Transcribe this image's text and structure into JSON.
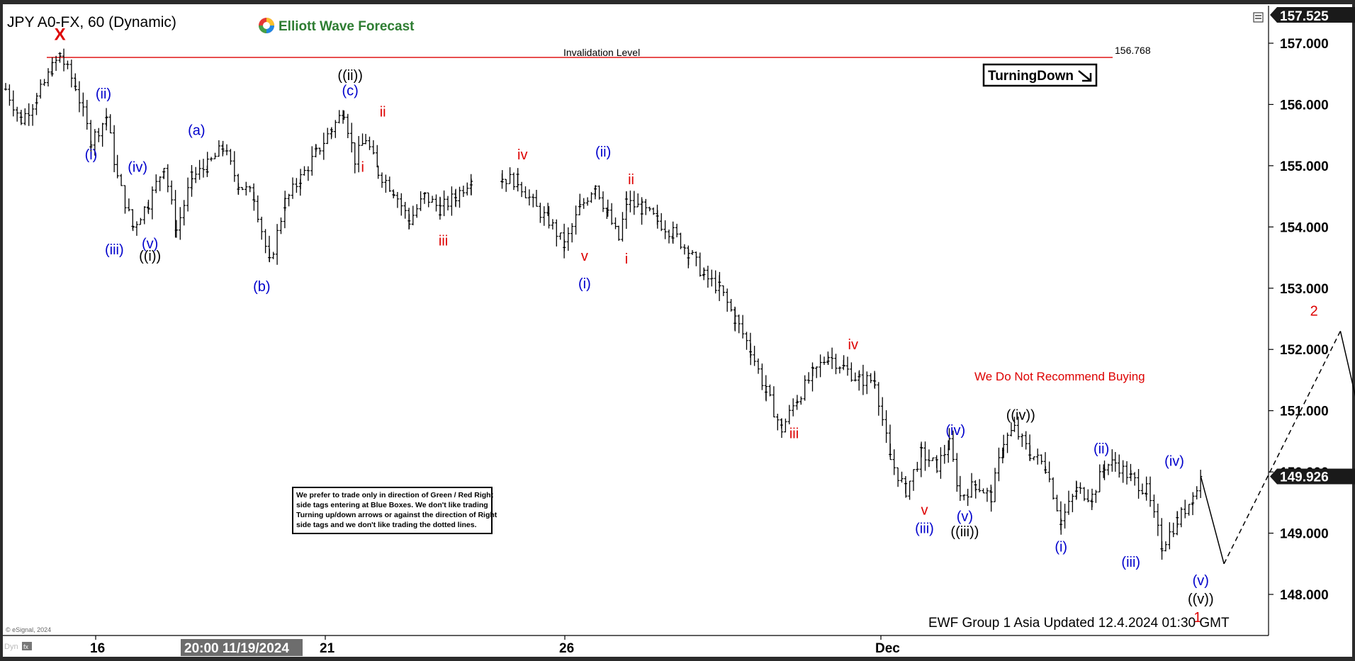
{
  "chart_data": {
    "type": "ohlc",
    "title": "JPY A0-FX, 60 (Dynamic)",
    "brand": "Elliott Wave Forecast",
    "y_axis": {
      "ticks": [
        "157.000",
        "156.000",
        "155.000",
        "154.000",
        "153.000",
        "152.000",
        "151.000",
        "150.000",
        "149.000",
        "148.000"
      ],
      "ylim": [
        147.4,
        157.7
      ],
      "top_price_tag": "157.525",
      "last_price_tag": "149.926"
    },
    "x_axis": {
      "ticks": [
        "16",
        "21",
        "26",
        "Dec"
      ],
      "cursor_label": "20:00 11/19/2024"
    },
    "invalidation": {
      "label": "Invalidation Level",
      "value": 156.768,
      "value_label": "156.768"
    },
    "turning_badge": "TurningDown",
    "advice": "We Do Not Recommend Buying",
    "disclaimer_lines": [
      "We prefer to trade only in direction of Green / Red Right",
      "side tags entering at Blue Boxes. We don't like trading",
      "Turning up/down arrows or against the direction of Right",
      "side tags and we don't like trading the dotted lines."
    ],
    "footer": "EWF Group 1 Asia Updated 12.4.2024 01:30 GMT",
    "copyright": "© eSignal, 2024",
    "corner_labels": [
      "Dyn",
      "fx"
    ],
    "price_path": [
      {
        "x": 0,
        "y": 156.25
      },
      {
        "x": 1,
        "y": 155.75
      },
      {
        "x": 2,
        "y": 156.1
      },
      {
        "x": 3,
        "y": 156.6
      },
      {
        "x": 3.5,
        "y": 156.8
      },
      {
        "x": 4.5,
        "y": 156.3
      },
      {
        "x": 5.5,
        "y": 155.4
      },
      {
        "x": 6.5,
        "y": 155.8
      },
      {
        "x": 7.2,
        "y": 154.8
      },
      {
        "x": 8.2,
        "y": 154.0
      },
      {
        "x": 9.2,
        "y": 154.4
      },
      {
        "x": 10.2,
        "y": 155.0
      },
      {
        "x": 11,
        "y": 153.95
      },
      {
        "x": 12,
        "y": 154.8
      },
      {
        "x": 13,
        "y": 155.0
      },
      {
        "x": 14,
        "y": 155.3
      },
      {
        "x": 15,
        "y": 154.7
      },
      {
        "x": 16,
        "y": 154.5
      },
      {
        "x": 17,
        "y": 153.4
      },
      {
        "x": 18,
        "y": 154.4
      },
      {
        "x": 19,
        "y": 154.8
      },
      {
        "x": 20,
        "y": 155.2
      },
      {
        "x": 21,
        "y": 155.6
      },
      {
        "x": 21.8,
        "y": 155.9
      },
      {
        "x": 22.5,
        "y": 155.1
      },
      {
        "x": 23.2,
        "y": 155.45
      },
      {
        "x": 24,
        "y": 154.9
      },
      {
        "x": 25,
        "y": 154.6
      },
      {
        "x": 26,
        "y": 154.1
      },
      {
        "x": 27,
        "y": 154.5
      },
      {
        "x": 28,
        "y": 154.3
      },
      {
        "x": 29,
        "y": 154.5
      },
      {
        "x": 30,
        "y": 154.8
      },
      {
        "x": 31,
        "y": 154.4
      },
      {
        "x": 32,
        "y": 154.8
      },
      {
        "x": 33,
        "y": 154.75
      },
      {
        "x": 34.2,
        "y": 154.3
      },
      {
        "x": 35,
        "y": 154.1
      },
      {
        "x": 36,
        "y": 153.7
      },
      {
        "x": 37,
        "y": 154.3
      },
      {
        "x": 38,
        "y": 154.7
      },
      {
        "x": 38.8,
        "y": 154.2
      },
      {
        "x": 39.5,
        "y": 153.8
      },
      {
        "x": 40,
        "y": 154.4
      },
      {
        "x": 41,
        "y": 154.3
      },
      {
        "x": 42,
        "y": 154.1
      },
      {
        "x": 43,
        "y": 153.9
      },
      {
        "x": 44,
        "y": 153.6
      },
      {
        "x": 45,
        "y": 153.2
      },
      {
        "x": 46,
        "y": 153.0
      },
      {
        "x": 47,
        "y": 152.5
      },
      {
        "x": 48,
        "y": 152.0
      },
      {
        "x": 49,
        "y": 151.3
      },
      {
        "x": 50,
        "y": 150.7
      },
      {
        "x": 51,
        "y": 151.2
      },
      {
        "x": 52,
        "y": 151.6
      },
      {
        "x": 53,
        "y": 151.9
      },
      {
        "x": 54,
        "y": 151.7
      },
      {
        "x": 55,
        "y": 151.5
      },
      {
        "x": 56,
        "y": 151.5
      },
      {
        "x": 57,
        "y": 150.2
      },
      {
        "x": 58,
        "y": 149.7
      },
      {
        "x": 59,
        "y": 150.3
      },
      {
        "x": 60,
        "y": 150.1
      },
      {
        "x": 60.8,
        "y": 150.45
      },
      {
        "x": 61.5,
        "y": 149.6
      },
      {
        "x": 62.5,
        "y": 149.8
      },
      {
        "x": 63.5,
        "y": 149.6
      },
      {
        "x": 64.3,
        "y": 150.5
      },
      {
        "x": 65,
        "y": 150.7
      },
      {
        "x": 66,
        "y": 150.3
      },
      {
        "x": 67,
        "y": 150.1
      },
      {
        "x": 68,
        "y": 149.2
      },
      {
        "x": 69,
        "y": 149.7
      },
      {
        "x": 70,
        "y": 149.6
      },
      {
        "x": 70.8,
        "y": 150.1
      },
      {
        "x": 71.5,
        "y": 150.15
      },
      {
        "x": 72.5,
        "y": 149.9
      },
      {
        "x": 73.5,
        "y": 149.7
      },
      {
        "x": 74.5,
        "y": 148.8
      },
      {
        "x": 75.5,
        "y": 149.2
      },
      {
        "x": 76.5,
        "y": 149.6
      },
      {
        "x": 77,
        "y": 149.9
      }
    ],
    "projection": [
      {
        "x": 77,
        "y": 149.93,
        "style": "solid"
      },
      {
        "x": 78.5,
        "y": 148.5,
        "style": "dashed"
      },
      {
        "x": 86,
        "y": 152.3,
        "style": "solid"
      },
      {
        "x": 90,
        "y": 147.9
      }
    ],
    "wave_labels": [
      {
        "text": "X",
        "x": 3.5,
        "y": 157.05,
        "color": "#dd0000",
        "big": true
      },
      {
        "text": "(i)",
        "x": 5.5,
        "y": 155.1,
        "color": "#0000cc"
      },
      {
        "text": "(ii)",
        "x": 6.3,
        "y": 156.1,
        "color": "#0000cc"
      },
      {
        "text": "(iii)",
        "x": 7.0,
        "y": 153.55,
        "color": "#0000cc"
      },
      {
        "text": "(iv)",
        "x": 8.5,
        "y": 154.9,
        "color": "#0000cc"
      },
      {
        "text": "(v)",
        "x": 9.3,
        "y": 153.65,
        "color": "#0000cc"
      },
      {
        "text": "((i))",
        "x": 9.3,
        "y": 153.45,
        "color": "#000000"
      },
      {
        "text": "(a)",
        "x": 12.3,
        "y": 155.5,
        "color": "#0000cc"
      },
      {
        "text": "(b)",
        "x": 16.5,
        "y": 152.95,
        "color": "#0000cc"
      },
      {
        "text": "((ii))",
        "x": 22.2,
        "y": 156.4,
        "color": "#000000"
      },
      {
        "text": "(c)",
        "x": 22.2,
        "y": 156.15,
        "color": "#0000cc"
      },
      {
        "text": "i",
        "x": 23.0,
        "y": 154.9,
        "color": "#dd0000"
      },
      {
        "text": "ii",
        "x": 24.3,
        "y": 155.8,
        "color": "#dd0000"
      },
      {
        "text": "iii",
        "x": 28.2,
        "y": 153.7,
        "color": "#dd0000"
      },
      {
        "text": "iv",
        "x": 33.3,
        "y": 155.1,
        "color": "#dd0000"
      },
      {
        "text": "v",
        "x": 37.3,
        "y": 153.45,
        "color": "#dd0000"
      },
      {
        "text": "(i)",
        "x": 37.3,
        "y": 153.0,
        "color": "#0000cc"
      },
      {
        "text": "(ii)",
        "x": 38.5,
        "y": 155.15,
        "color": "#0000cc"
      },
      {
        "text": "ii",
        "x": 40.3,
        "y": 154.7,
        "color": "#dd0000"
      },
      {
        "text": "i",
        "x": 40.0,
        "y": 153.4,
        "color": "#dd0000"
      },
      {
        "text": "iii",
        "x": 50.8,
        "y": 150.55,
        "color": "#dd0000"
      },
      {
        "text": "iv",
        "x": 54.6,
        "y": 152.0,
        "color": "#dd0000"
      },
      {
        "text": "v",
        "x": 59.2,
        "y": 149.3,
        "color": "#dd0000"
      },
      {
        "text": "(iii)",
        "x": 59.2,
        "y": 149.0,
        "color": "#0000cc"
      },
      {
        "text": "(iv)",
        "x": 61.2,
        "y": 150.6,
        "color": "#0000cc"
      },
      {
        "text": "(v)",
        "x": 61.8,
        "y": 149.2,
        "color": "#0000cc"
      },
      {
        "text": "((iii))",
        "x": 61.8,
        "y": 148.95,
        "color": "#000000"
      },
      {
        "text": "((iv))",
        "x": 65.4,
        "y": 150.85,
        "color": "#000000"
      },
      {
        "text": "(i)",
        "x": 68.0,
        "y": 148.7,
        "color": "#0000cc"
      },
      {
        "text": "(ii)",
        "x": 70.6,
        "y": 150.3,
        "color": "#0000cc"
      },
      {
        "text": "(iii)",
        "x": 72.5,
        "y": 148.45,
        "color": "#0000cc"
      },
      {
        "text": "(iv)",
        "x": 75.3,
        "y": 150.1,
        "color": "#0000cc"
      },
      {
        "text": "(v)",
        "x": 77.0,
        "y": 148.15,
        "color": "#0000cc"
      },
      {
        "text": "((v))",
        "x": 77.0,
        "y": 147.85,
        "color": "#000000"
      },
      {
        "text": "1",
        "x": 76.8,
        "y": 147.55,
        "color": "#dd0000"
      },
      {
        "text": "2",
        "x": 84.3,
        "y": 152.55,
        "color": "#dd0000"
      }
    ]
  },
  "colors": {
    "bars": "#000000",
    "invalidation": "#dd0000",
    "wave_blue": "#0000cc",
    "wave_red": "#dd0000",
    "axis_tag_bg": "#1a1a1a",
    "brand_green": "#2e7d32"
  }
}
